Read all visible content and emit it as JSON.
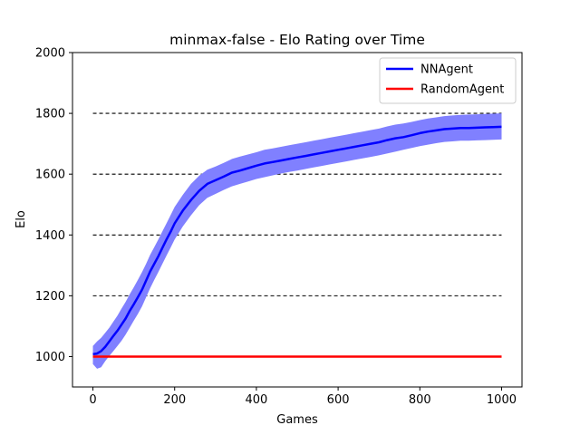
{
  "chart_data": {
    "type": "line",
    "title": "minmax-false - Elo Rating over Time",
    "xlabel": "Games",
    "ylabel": "Elo",
    "xlim": [
      -50,
      1050
    ],
    "ylim": [
      900,
      2000
    ],
    "xticks": [
      0,
      200,
      400,
      600,
      800,
      1000
    ],
    "yticks": [
      1000,
      1200,
      1400,
      1600,
      1800,
      2000
    ],
    "xtick_labels": [
      "0",
      "200",
      "400",
      "600",
      "800",
      "1000"
    ],
    "ytick_labels": [
      "1000",
      "1200",
      "1400",
      "1600",
      "1800",
      "2000"
    ],
    "reference_lines": [
      1200,
      1400,
      1600,
      1800
    ],
    "legend_position": "top-right",
    "grid": false,
    "series": [
      {
        "name": "NNAgent",
        "color": "#0000ff",
        "band_color": "#8080ff",
        "x": [
          0,
          10,
          20,
          30,
          40,
          50,
          60,
          70,
          80,
          90,
          100,
          110,
          120,
          130,
          140,
          150,
          160,
          170,
          180,
          190,
          200,
          220,
          240,
          260,
          280,
          300,
          320,
          340,
          360,
          380,
          400,
          420,
          440,
          460,
          480,
          500,
          520,
          540,
          560,
          580,
          600,
          620,
          640,
          660,
          680,
          700,
          720,
          740,
          760,
          780,
          800,
          820,
          840,
          860,
          880,
          900,
          920,
          940,
          960,
          980,
          1000
        ],
        "values": [
          1008,
          1010,
          1018,
          1032,
          1050,
          1068,
          1085,
          1105,
          1125,
          1150,
          1172,
          1195,
          1220,
          1250,
          1280,
          1305,
          1330,
          1358,
          1385,
          1410,
          1438,
          1480,
          1515,
          1545,
          1568,
          1580,
          1592,
          1605,
          1612,
          1620,
          1628,
          1635,
          1640,
          1645,
          1650,
          1655,
          1660,
          1665,
          1670,
          1675,
          1680,
          1685,
          1690,
          1695,
          1700,
          1705,
          1712,
          1718,
          1722,
          1728,
          1735,
          1740,
          1744,
          1748,
          1750,
          1752,
          1752,
          1753,
          1754,
          1755,
          1756
        ],
        "lower": [
          975,
          960,
          965,
          985,
          1002,
          1018,
          1035,
          1052,
          1072,
          1095,
          1118,
          1140,
          1165,
          1195,
          1225,
          1252,
          1278,
          1305,
          1332,
          1358,
          1385,
          1428,
          1465,
          1498,
          1522,
          1535,
          1548,
          1560,
          1568,
          1576,
          1584,
          1590,
          1596,
          1602,
          1607,
          1612,
          1617,
          1622,
          1627,
          1632,
          1637,
          1642,
          1647,
          1652,
          1657,
          1662,
          1668,
          1674,
          1680,
          1686,
          1692,
          1697,
          1702,
          1706,
          1708,
          1710,
          1710,
          1711,
          1712,
          1713,
          1714
        ],
        "upper": [
          1035,
          1050,
          1062,
          1078,
          1095,
          1115,
          1135,
          1158,
          1180,
          1205,
          1228,
          1252,
          1278,
          1305,
          1335,
          1360,
          1385,
          1412,
          1438,
          1465,
          1492,
          1532,
          1568,
          1595,
          1615,
          1625,
          1637,
          1650,
          1658,
          1665,
          1672,
          1680,
          1685,
          1690,
          1695,
          1700,
          1705,
          1710,
          1715,
          1720,
          1725,
          1730,
          1735,
          1740,
          1745,
          1750,
          1757,
          1763,
          1767,
          1772,
          1778,
          1783,
          1787,
          1791,
          1793,
          1795,
          1796,
          1797,
          1798,
          1799,
          1800
        ]
      },
      {
        "name": "RandomAgent",
        "color": "#ff0000",
        "x": [
          0,
          1000
        ],
        "values": [
          1000,
          1000
        ]
      }
    ]
  }
}
